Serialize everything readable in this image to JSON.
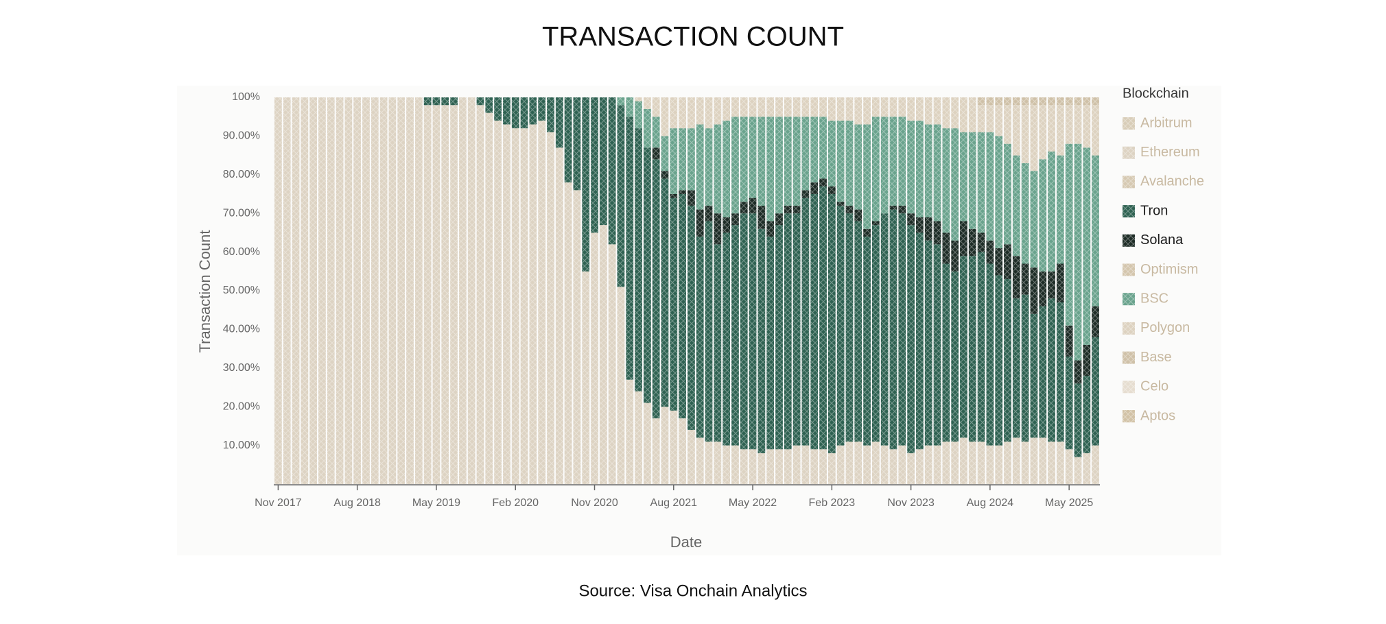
{
  "chart_data": {
    "type": "stacked_bar",
    "title": "TRANSACTION COUNT",
    "source": "Source: Visa Onchain Analytics",
    "x_label": "Date",
    "y_label": "Transaction Count",
    "legend_title": "Blockchain",
    "legend_position": "right",
    "categories": [
      "Nov 2017",
      null,
      null,
      null,
      null,
      null,
      null,
      null,
      null,
      "Aug 2018",
      null,
      null,
      null,
      null,
      null,
      null,
      null,
      null,
      "May 2019",
      null,
      null,
      null,
      null,
      null,
      null,
      null,
      null,
      "Feb 2020",
      null,
      null,
      null,
      null,
      null,
      null,
      null,
      null,
      "Nov 2020",
      null,
      null,
      null,
      null,
      null,
      null,
      null,
      null,
      "Aug 2021",
      null,
      null,
      null,
      null,
      null,
      null,
      null,
      null,
      "May 2022",
      null,
      null,
      null,
      null,
      null,
      null,
      null,
      null,
      "Feb 2023",
      null,
      null,
      null,
      null,
      null,
      null,
      null,
      null,
      "Nov 2023",
      null,
      null,
      null,
      null,
      null,
      null,
      null,
      null,
      "Aug 2024",
      null,
      null,
      null,
      null,
      null,
      null,
      null,
      null,
      "May 2025",
      null,
      null,
      null
    ],
    "ylim": [
      0,
      100
    ],
    "yticks": [
      {
        "value": 10,
        "label": "10.00%"
      },
      {
        "value": 20,
        "label": "20.00%"
      },
      {
        "value": 30,
        "label": "30.00%"
      },
      {
        "value": 40,
        "label": "40.00%"
      },
      {
        "value": 50,
        "label": "50.00%"
      },
      {
        "value": 60,
        "label": "60.00%"
      },
      {
        "value": 70,
        "label": "70.00%"
      },
      {
        "value": 80,
        "label": "80.00%"
      },
      {
        "value": 90,
        "label": "90.00%"
      },
      {
        "value": 100,
        "label": "100%"
      }
    ],
    "series": [
      {
        "name": "Arbitrum",
        "color": "#d8cdb8",
        "values": [
          0,
          0,
          0,
          0,
          0,
          0,
          0,
          0,
          0,
          0,
          0,
          0,
          0,
          0,
          0,
          0,
          0,
          0,
          0,
          0,
          0,
          0,
          0,
          0,
          0,
          0,
          0,
          0,
          0,
          0,
          0,
          0,
          0,
          0,
          0,
          0,
          0,
          0,
          0,
          0,
          0,
          0,
          0,
          0,
          0,
          0,
          0,
          0,
          0,
          0,
          0,
          0,
          0,
          0,
          0,
          0,
          0,
          0,
          0,
          0,
          0,
          0,
          0,
          0,
          0,
          0,
          0,
          0,
          0,
          0,
          0,
          0,
          0,
          0,
          0,
          0,
          0,
          0,
          0,
          0,
          0,
          0,
          0,
          0,
          0,
          0,
          0,
          0,
          0,
          0,
          0,
          0,
          0,
          0
        ]
      },
      {
        "name": "Ethereum",
        "color": "#ddd3c3",
        "values": [
          100,
          100,
          100,
          100,
          100,
          100,
          100,
          100,
          100,
          100,
          100,
          100,
          100,
          100,
          100,
          100,
          100,
          98,
          98,
          98,
          98,
          100,
          100,
          98,
          96,
          94,
          93,
          92,
          92,
          93,
          94,
          91,
          87,
          78,
          76,
          55,
          65,
          67,
          62,
          51,
          27,
          24,
          21,
          17,
          20,
          19,
          17,
          14,
          12,
          11,
          11,
          10,
          10,
          9,
          9,
          8,
          9,
          9,
          9,
          10,
          10,
          9,
          9,
          8,
          10,
          11,
          11,
          10,
          11,
          10,
          9,
          10,
          8,
          9,
          10,
          10,
          11,
          11,
          12,
          11,
          11,
          10,
          10,
          11,
          12,
          11,
          12,
          12,
          11,
          11,
          9,
          7,
          8,
          10
        ]
      },
      {
        "name": "Avalanche",
        "color": "#d6c9b2",
        "values": [
          0,
          0,
          0,
          0,
          0,
          0,
          0,
          0,
          0,
          0,
          0,
          0,
          0,
          0,
          0,
          0,
          0,
          0,
          0,
          0,
          0,
          0,
          0,
          0,
          0,
          0,
          0,
          0,
          0,
          0,
          0,
          0,
          0,
          0,
          0,
          0,
          0,
          0,
          0,
          0,
          0,
          0,
          0,
          0,
          0,
          0,
          0,
          0,
          0,
          0,
          0,
          0,
          0,
          0,
          0,
          0,
          0,
          0,
          0,
          0,
          0,
          0,
          0,
          0,
          0,
          0,
          0,
          0,
          0,
          0,
          0,
          0,
          0,
          0,
          0,
          0,
          0,
          0,
          0,
          0,
          0,
          0,
          0,
          0,
          0,
          0,
          0,
          0,
          0,
          0,
          0,
          0,
          0,
          0
        ]
      },
      {
        "name": "Tron",
        "color": "#2f6252",
        "values": [
          0,
          0,
          0,
          0,
          0,
          0,
          0,
          0,
          0,
          0,
          0,
          0,
          0,
          0,
          0,
          0,
          0,
          2,
          2,
          2,
          2,
          0,
          0,
          2,
          4,
          6,
          7,
          8,
          8,
          7,
          6,
          9,
          13,
          22,
          24,
          45,
          35,
          33,
          38,
          47,
          68,
          68,
          66,
          67,
          59,
          55,
          58,
          58,
          52,
          57,
          51,
          55,
          57,
          61,
          61,
          58,
          55,
          58,
          61,
          60,
          64,
          66,
          68,
          67,
          62,
          59,
          57,
          54,
          56,
          60,
          62,
          60,
          59,
          56,
          53,
          52,
          46,
          44,
          47,
          48,
          49,
          47,
          44,
          42,
          36,
          38,
          32,
          34,
          37,
          36,
          24,
          19,
          20,
          28
        ]
      },
      {
        "name": "Solana",
        "color": "#1e2d27",
        "values": [
          0,
          0,
          0,
          0,
          0,
          0,
          0,
          0,
          0,
          0,
          0,
          0,
          0,
          0,
          0,
          0,
          0,
          0,
          0,
          0,
          0,
          0,
          0,
          0,
          0,
          0,
          0,
          0,
          0,
          0,
          0,
          0,
          0,
          0,
          0,
          0,
          0,
          0,
          0,
          0,
          0,
          0,
          0,
          3,
          2,
          1,
          1,
          4,
          7,
          4,
          8,
          4,
          3,
          3,
          4,
          6,
          4,
          3,
          2,
          2,
          2,
          3,
          2,
          2,
          1,
          2,
          3,
          2,
          1,
          0,
          1,
          2,
          3,
          4,
          6,
          6,
          8,
          8,
          9,
          7,
          5,
          6,
          7,
          9,
          11,
          8,
          12,
          9,
          7,
          10,
          8,
          6,
          8,
          8
        ]
      },
      {
        "name": "Optimism",
        "color": "#d4c6ad",
        "values": [
          0,
          0,
          0,
          0,
          0,
          0,
          0,
          0,
          0,
          0,
          0,
          0,
          0,
          0,
          0,
          0,
          0,
          0,
          0,
          0,
          0,
          0,
          0,
          0,
          0,
          0,
          0,
          0,
          0,
          0,
          0,
          0,
          0,
          0,
          0,
          0,
          0,
          0,
          0,
          0,
          0,
          0,
          0,
          0,
          0,
          0,
          0,
          0,
          0,
          0,
          0,
          0,
          0,
          0,
          0,
          0,
          0,
          0,
          0,
          0,
          0,
          0,
          0,
          0,
          0,
          0,
          0,
          0,
          0,
          0,
          0,
          0,
          0,
          0,
          0,
          0,
          0,
          0,
          0,
          0,
          0,
          0,
          0,
          0,
          0,
          0,
          0,
          0,
          0,
          0,
          0,
          0,
          0,
          0
        ]
      },
      {
        "name": "BSC",
        "color": "#6aa38d",
        "values": [
          0,
          0,
          0,
          0,
          0,
          0,
          0,
          0,
          0,
          0,
          0,
          0,
          0,
          0,
          0,
          0,
          0,
          0,
          0,
          0,
          0,
          0,
          0,
          0,
          0,
          0,
          0,
          0,
          0,
          0,
          0,
          0,
          0,
          0,
          0,
          0,
          0,
          0,
          0,
          2,
          5,
          7,
          10,
          8,
          9,
          17,
          16,
          16,
          22,
          20,
          23,
          25,
          25,
          22,
          21,
          23,
          27,
          25,
          23,
          23,
          19,
          17,
          16,
          17,
          21,
          22,
          22,
          27,
          27,
          25,
          23,
          23,
          24,
          25,
          24,
          25,
          27,
          29,
          23,
          25,
          26,
          28,
          29,
          26,
          26,
          26,
          25,
          29,
          31,
          28,
          47,
          56,
          51,
          39
        ]
      },
      {
        "name": "Polygon",
        "color": "#ddd2c0",
        "values": [
          0,
          0,
          0,
          0,
          0,
          0,
          0,
          0,
          0,
          0,
          0,
          0,
          0,
          0,
          0,
          0,
          0,
          0,
          0,
          0,
          0,
          0,
          0,
          0,
          0,
          0,
          0,
          0,
          0,
          0,
          0,
          0,
          0,
          0,
          0,
          0,
          0,
          0,
          0,
          0,
          0,
          1,
          3,
          5,
          10,
          8,
          8,
          8,
          7,
          8,
          7,
          6,
          5,
          5,
          5,
          5,
          5,
          5,
          5,
          5,
          5,
          5,
          5,
          6,
          6,
          6,
          7,
          7,
          5,
          5,
          5,
          5,
          6,
          6,
          7,
          7,
          8,
          8,
          9,
          9,
          7,
          7,
          8,
          10,
          13,
          15,
          17,
          14,
          12,
          13,
          10,
          10,
          11,
          13
        ]
      },
      {
        "name": "Base",
        "color": "#cfc1a8",
        "values": [
          0,
          0,
          0,
          0,
          0,
          0,
          0,
          0,
          0,
          0,
          0,
          0,
          0,
          0,
          0,
          0,
          0,
          0,
          0,
          0,
          0,
          0,
          0,
          0,
          0,
          0,
          0,
          0,
          0,
          0,
          0,
          0,
          0,
          0,
          0,
          0,
          0,
          0,
          0,
          0,
          0,
          0,
          0,
          0,
          0,
          0,
          0,
          0,
          0,
          0,
          0,
          0,
          0,
          0,
          0,
          0,
          0,
          0,
          0,
          0,
          0,
          0,
          0,
          0,
          0,
          0,
          0,
          0,
          0,
          0,
          0,
          0,
          0,
          0,
          0,
          0,
          0,
          0,
          0,
          0,
          2,
          2,
          2,
          2,
          2,
          2,
          2,
          2,
          2,
          2,
          2,
          2,
          2,
          2
        ]
      },
      {
        "name": "Celo",
        "color": "#e6ddd0",
        "values": [
          0,
          0,
          0,
          0,
          0,
          0,
          0,
          0,
          0,
          0,
          0,
          0,
          0,
          0,
          0,
          0,
          0,
          0,
          0,
          0,
          0,
          0,
          0,
          0,
          0,
          0,
          0,
          0,
          0,
          0,
          0,
          0,
          0,
          0,
          0,
          0,
          0,
          0,
          0,
          0,
          0,
          0,
          0,
          0,
          0,
          0,
          0,
          0,
          0,
          0,
          0,
          0,
          0,
          0,
          0,
          0,
          0,
          0,
          0,
          0,
          0,
          0,
          0,
          0,
          0,
          0,
          0,
          0,
          0,
          0,
          0,
          0,
          0,
          0,
          0,
          0,
          0,
          0,
          0,
          0,
          0,
          0,
          0,
          0,
          0,
          0,
          0,
          0,
          0,
          0,
          0,
          0,
          0,
          0
        ]
      },
      {
        "name": "Aptos",
        "color": "#d2c2a6",
        "values": [
          0,
          0,
          0,
          0,
          0,
          0,
          0,
          0,
          0,
          0,
          0,
          0,
          0,
          0,
          0,
          0,
          0,
          0,
          0,
          0,
          0,
          0,
          0,
          0,
          0,
          0,
          0,
          0,
          0,
          0,
          0,
          0,
          0,
          0,
          0,
          0,
          0,
          0,
          0,
          0,
          0,
          0,
          0,
          0,
          0,
          0,
          0,
          0,
          0,
          0,
          0,
          0,
          0,
          0,
          0,
          0,
          0,
          0,
          0,
          0,
          0,
          0,
          0,
          0,
          0,
          0,
          0,
          0,
          0,
          0,
          0,
          0,
          0,
          0,
          0,
          0,
          0,
          0,
          0,
          0,
          0,
          0,
          0,
          0,
          0,
          0,
          0,
          0,
          0,
          0,
          0,
          0,
          0,
          0
        ]
      }
    ]
  }
}
